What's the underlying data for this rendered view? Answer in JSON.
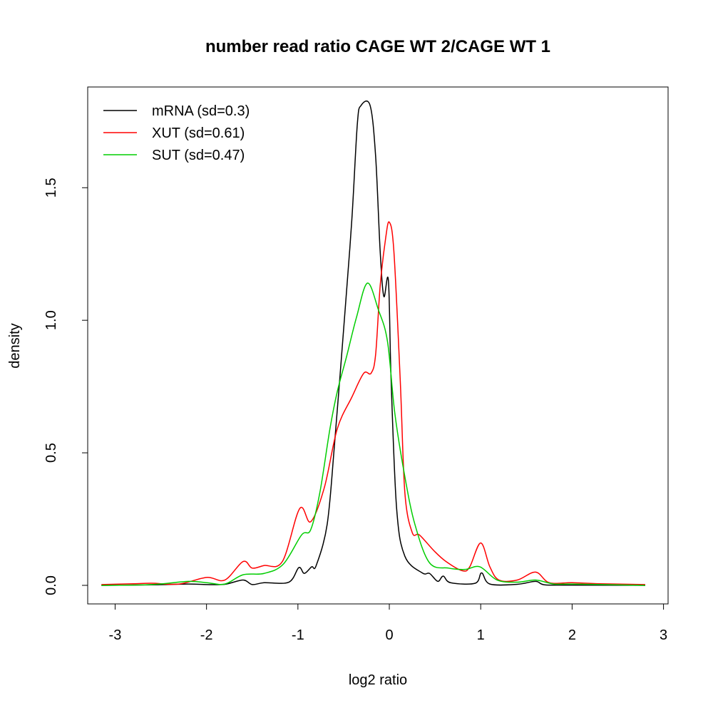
{
  "chart_data": {
    "type": "line",
    "title": "number read ratio CAGE WT 2/CAGE WT 1",
    "xlabel": "log2 ratio",
    "ylabel": "density",
    "xlim": [
      -3.3,
      3.05
    ],
    "ylim": [
      -0.07,
      1.88
    ],
    "x_ticks": [
      -3,
      -2,
      -1,
      0,
      1,
      2,
      3
    ],
    "x_tick_labels": [
      "-3",
      "-2",
      "-1",
      "0",
      "1",
      "2",
      "3"
    ],
    "y_ticks": [
      0,
      0.5,
      1,
      1.5
    ],
    "y_tick_labels": [
      "0.0",
      "0.5",
      "1.0",
      "1.5"
    ],
    "grid": false,
    "legend_position": "top-left",
    "series": [
      {
        "name": "mRNA (sd=0.3)",
        "color": "#000000",
        "x": [
          -3.15,
          -2.6,
          -2.2,
          -2.0,
          -1.8,
          -1.6,
          -1.5,
          -1.37,
          -1.1,
          -0.99,
          -0.93,
          -0.85,
          -0.8,
          -0.68,
          -0.6,
          -0.49,
          -0.41,
          -0.35,
          -0.31,
          -0.21,
          -0.15,
          -0.1,
          -0.06,
          -0.01,
          0.02,
          0.08,
          0.17,
          0.36,
          0.44,
          0.53,
          0.59,
          0.67,
          0.94,
          1.01,
          1.1,
          1.4,
          1.6,
          1.7,
          2.0,
          2.8
        ],
        "y": [
          0,
          0.002,
          0.005,
          0.003,
          0.004,
          0.02,
          0.003,
          0.01,
          0.012,
          0.067,
          0.045,
          0.07,
          0.075,
          0.23,
          0.53,
          1.01,
          1.38,
          1.74,
          1.81,
          1.81,
          1.62,
          1.26,
          1.09,
          1.15,
          0.77,
          0.29,
          0.11,
          0.047,
          0.045,
          0.015,
          0.035,
          0.01,
          0.008,
          0.047,
          0.005,
          0.004,
          0.015,
          0.002,
          0.001,
          0
        ]
      },
      {
        "name": "XUT (sd=0.61)",
        "color": "#ff0000",
        "x": [
          -3.15,
          -2.8,
          -2.6,
          -2.3,
          -2.0,
          -1.8,
          -1.6,
          -1.5,
          -1.37,
          -1.17,
          -0.98,
          -0.86,
          -0.71,
          -0.57,
          -0.41,
          -0.28,
          -0.2,
          -0.15,
          -0.1,
          -0.04,
          0.0,
          0.05,
          0.12,
          0.17,
          0.25,
          0.33,
          0.49,
          0.62,
          0.8,
          0.88,
          1.0,
          1.1,
          1.2,
          1.4,
          1.6,
          1.75,
          2.0,
          2.3,
          2.8
        ],
        "y": [
          0.003,
          0.006,
          0.008,
          0.005,
          0.03,
          0.02,
          0.09,
          0.065,
          0.075,
          0.09,
          0.29,
          0.24,
          0.37,
          0.59,
          0.71,
          0.8,
          0.8,
          0.87,
          1.13,
          1.31,
          1.37,
          1.26,
          0.77,
          0.35,
          0.2,
          0.19,
          0.13,
          0.09,
          0.055,
          0.07,
          0.16,
          0.07,
          0.02,
          0.02,
          0.05,
          0.01,
          0.01,
          0.006,
          0.003
        ]
      },
      {
        "name": "SUT (sd=0.47)",
        "color": "#00cd00",
        "x": [
          -3.15,
          -2.6,
          -2.2,
          -2.0,
          -1.8,
          -1.6,
          -1.37,
          -1.16,
          -0.96,
          -0.86,
          -0.76,
          -0.65,
          -0.57,
          -0.47,
          -0.36,
          -0.24,
          -0.12,
          -0.02,
          0.06,
          0.17,
          0.28,
          0.44,
          0.65,
          0.83,
          0.99,
          1.18,
          1.4,
          1.6,
          1.8,
          2.0,
          2.8
        ],
        "y": [
          0,
          0.003,
          0.015,
          0.01,
          0.005,
          0.04,
          0.045,
          0.08,
          0.19,
          0.21,
          0.35,
          0.59,
          0.73,
          0.86,
          1.01,
          1.14,
          1.04,
          0.92,
          0.65,
          0.41,
          0.23,
          0.085,
          0.065,
          0.06,
          0.07,
          0.02,
          0.012,
          0.02,
          0.005,
          0.005,
          0
        ]
      }
    ]
  }
}
